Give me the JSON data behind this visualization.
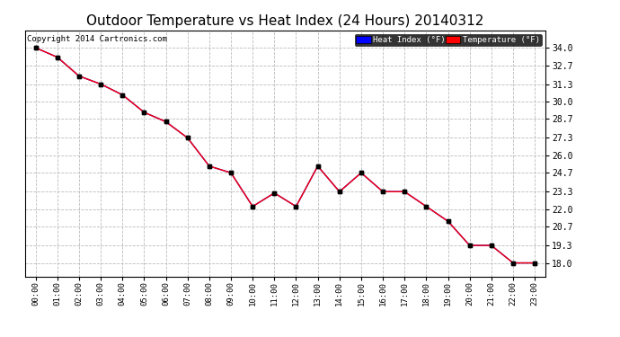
{
  "title": "Outdoor Temperature vs Heat Index (24 Hours) 20140312",
  "copyright": "Copyright 2014 Cartronics.com",
  "x_labels": [
    "00:00",
    "01:00",
    "02:00",
    "03:00",
    "04:00",
    "05:00",
    "06:00",
    "07:00",
    "08:00",
    "09:00",
    "10:00",
    "11:00",
    "12:00",
    "13:00",
    "14:00",
    "15:00",
    "16:00",
    "17:00",
    "18:00",
    "19:00",
    "20:00",
    "21:00",
    "22:00",
    "23:00"
  ],
  "temperature": [
    34.0,
    33.3,
    31.9,
    31.3,
    30.5,
    29.2,
    28.5,
    27.3,
    25.2,
    24.7,
    22.2,
    23.2,
    22.2,
    25.2,
    23.3,
    24.7,
    23.3,
    23.3,
    22.2,
    21.1,
    19.3,
    19.3,
    18.0,
    18.0
  ],
  "heat_index": [
    34.0,
    33.3,
    31.9,
    31.3,
    30.5,
    29.2,
    28.5,
    27.3,
    25.2,
    24.7,
    22.2,
    23.2,
    22.2,
    25.2,
    23.3,
    24.7,
    23.3,
    23.3,
    22.2,
    21.1,
    19.3,
    19.3,
    18.0,
    18.0
  ],
  "temp_color": "#ff0000",
  "heat_index_color": "#0000ff",
  "bg_color": "#ffffff",
  "plot_bg_color": "#ffffff",
  "grid_color": "#bbbbbb",
  "title_fontsize": 11,
  "copyright_fontsize": 6.5,
  "y_min": 17.0,
  "y_max": 35.3,
  "y_ticks": [
    18.0,
    19.3,
    20.7,
    22.0,
    23.3,
    24.7,
    26.0,
    27.3,
    28.7,
    30.0,
    31.3,
    32.7,
    34.0
  ],
  "legend_heat_index_label": "Heat Index (°F)",
  "legend_temp_label": "Temperature (°F)"
}
